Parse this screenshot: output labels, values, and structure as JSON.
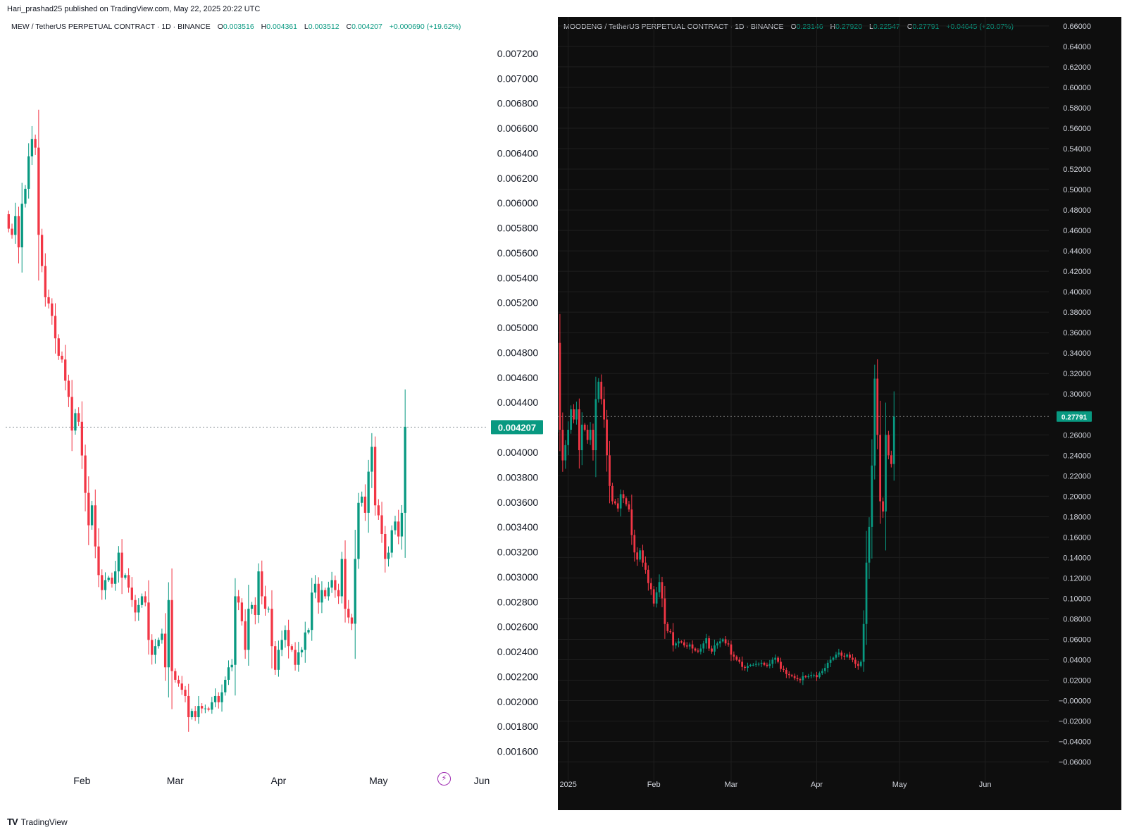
{
  "publication": "Hari_prashad25 published on TradingView.com, May 22, 2025 20:22 UTC",
  "footer": {
    "brand": "TradingView"
  },
  "colors": {
    "up": "#089981",
    "down": "#f23645"
  },
  "chart_data": [
    {
      "type": "candlestick",
      "theme": "light",
      "legend": {
        "symbol": "MEW / TetherUS PERPETUAL CONTRACT · 1D · BINANCE",
        "o_label": "O",
        "o": "0.003516",
        "h_label": "H",
        "h": "0.004361",
        "l_label": "L",
        "l": "0.003512",
        "c_label": "C",
        "c": "0.004207",
        "change": "+0.000690 (+19.62%)"
      },
      "ylim": [
        0.00155,
        0.00735
      ],
      "yticks": [
        "0.007200",
        "0.007000",
        "0.006800",
        "0.006600",
        "0.006400",
        "0.006200",
        "0.006000",
        "0.005800",
        "0.005600",
        "0.005400",
        "0.005200",
        "0.005000",
        "0.004800",
        "0.004600",
        "0.004400",
        "0.004000",
        "0.003800",
        "0.003600",
        "0.003400",
        "0.003200",
        "0.003000",
        "0.002800",
        "0.002600",
        "0.002400",
        "0.002200",
        "0.002000",
        "0.001800",
        "0.001600"
      ],
      "last_price": "0.004207",
      "xticks": [
        {
          "label": "Feb",
          "date": "2025-02-01"
        },
        {
          "label": "Mar",
          "date": "2025-03-01"
        },
        {
          "label": "Apr",
          "date": "2025-04-01"
        },
        {
          "label": "May",
          "date": "2025-05-01"
        },
        {
          "label": "Jun",
          "date": "2025-06-01"
        }
      ],
      "closes": [
        0.0058,
        0.00575,
        0.0059,
        0.00565,
        0.006,
        0.00612,
        0.00638,
        0.00652,
        0.00645,
        0.00575,
        0.0055,
        0.00525,
        0.0052,
        0.0051,
        0.00492,
        0.00478,
        0.00475,
        0.00458,
        0.00445,
        0.00418,
        0.00432,
        0.00425,
        0.00398,
        0.00368,
        0.00342,
        0.00358,
        0.00325,
        0.00302,
        0.0029,
        0.00298,
        0.003,
        0.00295,
        0.00305,
        0.0032,
        0.003,
        0.00302,
        0.00292,
        0.00282,
        0.00272,
        0.00278,
        0.00285,
        0.0028,
        0.0025,
        0.00238,
        0.00245,
        0.0025,
        0.00255,
        0.00228,
        0.00282,
        0.00225,
        0.00218,
        0.00215,
        0.0021,
        0.00205,
        0.00188,
        0.00193,
        0.00188,
        0.00197,
        0.00195,
        0.00195,
        0.00194,
        0.002,
        0.00205,
        0.002,
        0.00208,
        0.00218,
        0.00228,
        0.0023,
        0.00285,
        0.0028,
        0.00265,
        0.00242,
        0.00275,
        0.00278,
        0.0027,
        0.00305,
        0.00285,
        0.00275,
        0.00275,
        0.00245,
        0.00226,
        0.00242,
        0.0025,
        0.00258,
        0.00245,
        0.00242,
        0.0023,
        0.0024,
        0.00242,
        0.00256,
        0.00258,
        0.00288,
        0.00295,
        0.0028,
        0.0029,
        0.00285,
        0.00292,
        0.00298,
        0.0029,
        0.00285,
        0.00315,
        0.00275,
        0.00268,
        0.00263,
        0.00315,
        0.0036,
        0.00365,
        0.00352,
        0.00385,
        0.00405,
        0.00358,
        0.0035,
        0.00335,
        0.00315,
        0.0032,
        0.00338,
        0.00345,
        0.00333,
        0.00352,
        0.00421
      ]
    },
    {
      "type": "candlestick",
      "theme": "dark",
      "legend": {
        "symbol": "MOODENG / TetherUS PERPETUAL CONTRACT · 1D · BINANCE",
        "o_label": "O",
        "o": "0.23146",
        "h_label": "H",
        "h": "0.27920",
        "l_label": "L",
        "l": "0.22547",
        "c_label": "C",
        "c": "0.27791",
        "change": "+0.04645 (+20.07%)"
      },
      "ylim": [
        -0.0713,
        0.6613
      ],
      "yticks": [
        "0.66000",
        "0.64000",
        "0.62000",
        "0.60000",
        "0.58000",
        "0.56000",
        "0.54000",
        "0.52000",
        "0.50000",
        "0.48000",
        "0.46000",
        "0.44000",
        "0.42000",
        "0.40000",
        "0.38000",
        "0.36000",
        "0.34000",
        "0.32000",
        "0.30000",
        "0.26000",
        "0.24000",
        "0.22000",
        "0.20000",
        "0.18000",
        "0.16000",
        "0.14000",
        "0.12000",
        "0.10000",
        "0.08000",
        "0.06000",
        "0.04000",
        "0.02000",
        "−0.00000",
        "−0.02000",
        "−0.04000",
        "−0.06000"
      ],
      "last_price": "0.27791",
      "xticks": [
        {
          "label": "2025",
          "date": "2025-01-01"
        },
        {
          "label": "Feb",
          "date": "2025-02-01"
        },
        {
          "label": "Mar",
          "date": "2025-03-01"
        },
        {
          "label": "Apr",
          "date": "2025-04-01"
        },
        {
          "label": "May",
          "date": "2025-05-01"
        },
        {
          "label": "Jun",
          "date": "2025-06-01"
        }
      ],
      "closes": [
        0.35,
        0.265,
        0.235,
        0.25,
        0.265,
        0.285,
        0.275,
        0.285,
        0.245,
        0.27,
        0.265,
        0.255,
        0.265,
        0.245,
        0.295,
        0.312,
        0.295,
        0.275,
        0.24,
        0.21,
        0.195,
        0.193,
        0.188,
        0.202,
        0.198,
        0.192,
        0.187,
        0.162,
        0.145,
        0.138,
        0.147,
        0.135,
        0.128,
        0.115,
        0.109,
        0.095,
        0.106,
        0.116,
        0.1,
        0.075,
        0.068,
        0.067,
        0.054,
        0.056,
        0.058,
        0.057,
        0.054,
        0.053,
        0.055,
        0.051,
        0.049,
        0.048,
        0.051,
        0.056,
        0.061,
        0.051,
        0.048,
        0.054,
        0.056,
        0.058,
        0.06,
        0.056,
        0.055,
        0.045,
        0.043,
        0.04,
        0.038,
        0.033,
        0.032,
        0.034,
        0.035,
        0.035,
        0.036,
        0.036,
        0.037,
        0.035,
        0.034,
        0.036,
        0.04,
        0.042,
        0.038,
        0.031,
        0.03,
        0.026,
        0.025,
        0.024,
        0.022,
        0.021,
        0.02,
        0.024,
        0.023,
        0.024,
        0.025,
        0.025,
        0.023,
        0.027,
        0.029,
        0.032,
        0.037,
        0.04,
        0.042,
        0.045,
        0.047,
        0.044,
        0.043,
        0.045,
        0.042,
        0.04,
        0.036,
        0.034,
        0.038,
        0.075,
        0.135,
        0.17,
        0.23,
        0.315,
        0.26,
        0.195,
        0.185,
        0.26,
        0.24,
        0.23146,
        0.27791
      ]
    }
  ]
}
